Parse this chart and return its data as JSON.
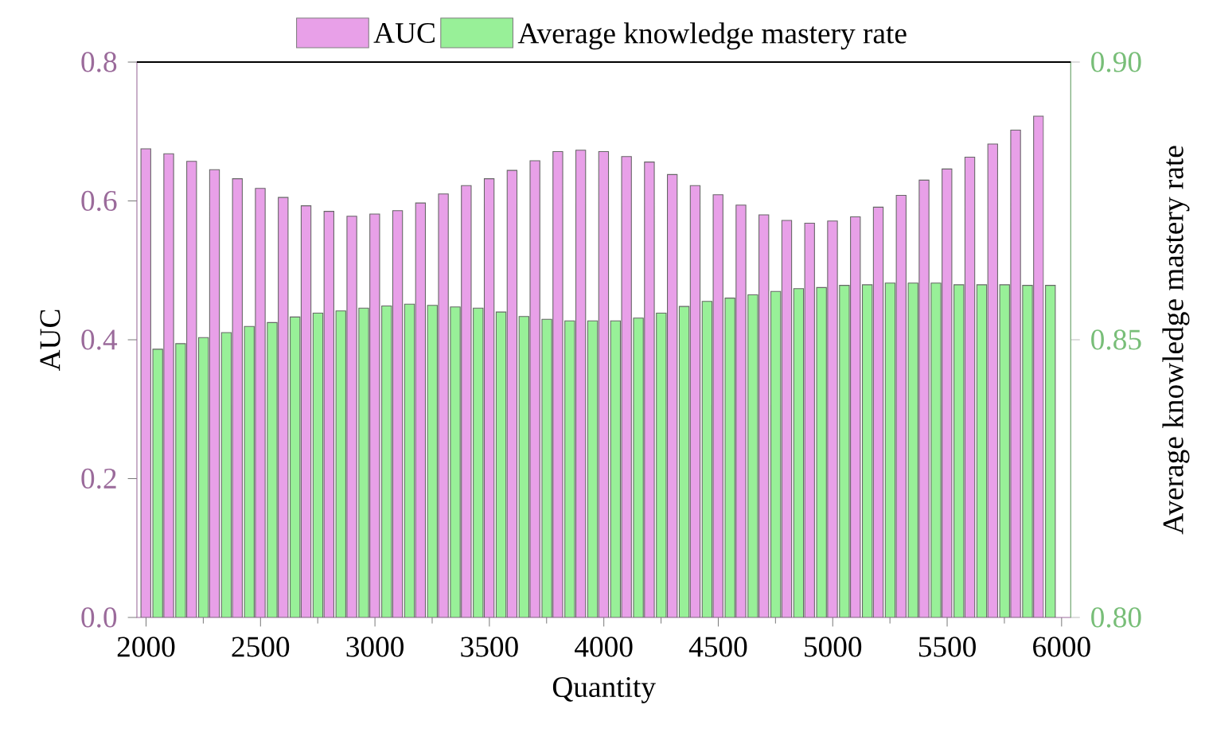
{
  "chart_data": {
    "type": "bar",
    "xlabel": "Quantity",
    "ylabel": "AUC",
    "y2label": "Average knowledge mastery rate",
    "x": [
      2000,
      2100,
      2200,
      2300,
      2400,
      2500,
      2600,
      2700,
      2800,
      2900,
      3000,
      3100,
      3200,
      3300,
      3400,
      3500,
      3600,
      3700,
      3800,
      3900,
      4000,
      4100,
      4200,
      4300,
      4400,
      4500,
      4600,
      4700,
      4800,
      4900,
      5000,
      5100,
      5200,
      5300,
      5400,
      5500,
      5600,
      5700,
      5800,
      5900
    ],
    "series": [
      {
        "name": "AUC",
        "color": "#e8a0e8",
        "values": [
          0.675,
          0.668,
          0.657,
          0.645,
          0.632,
          0.618,
          0.605,
          0.593,
          0.585,
          0.578,
          0.581,
          0.586,
          0.597,
          0.61,
          0.622,
          0.632,
          0.644,
          0.658,
          0.671,
          0.673,
          0.671,
          0.664,
          0.656,
          0.638,
          0.622,
          0.609,
          0.594,
          0.58,
          0.572,
          0.568,
          0.571,
          0.577,
          0.591,
          0.608,
          0.63,
          0.646,
          0.663,
          0.682,
          0.702,
          0.722
        ]
      },
      {
        "name": "Average knowledge mastery rate",
        "color": "#98f098",
        "axis": "y2",
        "values": [
          0.8483,
          0.8493,
          0.8504,
          0.8513,
          0.8524,
          0.8531,
          0.8541,
          0.8548,
          0.8552,
          0.8557,
          0.8561,
          0.8564,
          0.8562,
          0.8559,
          0.8557,
          0.855,
          0.8542,
          0.8537,
          0.8534,
          0.8534,
          0.8534,
          0.8539,
          0.8548,
          0.856,
          0.8569,
          0.8575,
          0.8581,
          0.8587,
          0.8592,
          0.8594,
          0.8598,
          0.8599,
          0.8602,
          0.8602,
          0.8602,
          0.8599,
          0.8599,
          0.8599,
          0.8598,
          0.8598
        ]
      }
    ],
    "xlim": [
      1960,
      6040
    ],
    "xticks": [
      2000,
      2500,
      3000,
      3500,
      4000,
      4500,
      5000,
      5500,
      6000
    ],
    "ylim": [
      0,
      0.8
    ],
    "yticks": [
      {
        "value": 0,
        "label": "0.0"
      },
      {
        "value": 0.2,
        "label": "0.2"
      },
      {
        "value": 0.4,
        "label": "0.4"
      },
      {
        "value": 0.6,
        "label": "0.6"
      },
      {
        "value": 0.8,
        "label": "0.8"
      }
    ],
    "y2lim": [
      0.8,
      0.9
    ],
    "y2ticks": [
      {
        "value": 0.8,
        "label": "0.80"
      },
      {
        "value": 0.85,
        "label": "0.85"
      },
      {
        "value": 0.9,
        "label": "0.90"
      }
    ],
    "grid": false,
    "legend": "top"
  }
}
